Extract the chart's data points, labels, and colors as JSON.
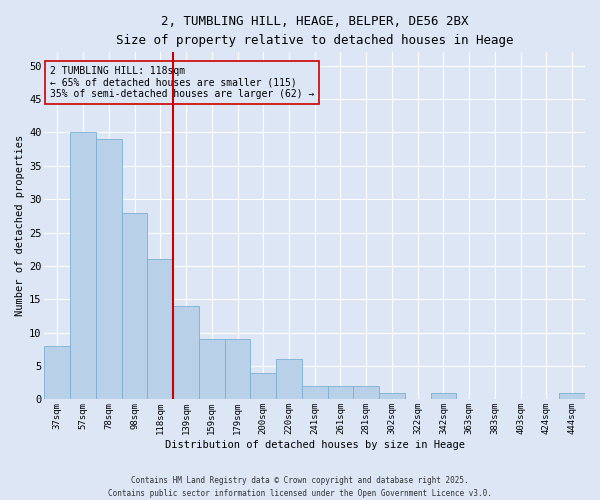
{
  "title_line1": "2, TUMBLING HILL, HEAGE, BELPER, DE56 2BX",
  "title_line2": "Size of property relative to detached houses in Heage",
  "xlabel": "Distribution of detached houses by size in Heage",
  "ylabel": "Number of detached properties",
  "categories": [
    "37sqm",
    "57sqm",
    "78sqm",
    "98sqm",
    "118sqm",
    "139sqm",
    "159sqm",
    "179sqm",
    "200sqm",
    "220sqm",
    "241sqm",
    "261sqm",
    "281sqm",
    "302sqm",
    "322sqm",
    "342sqm",
    "363sqm",
    "383sqm",
    "403sqm",
    "424sqm",
    "444sqm"
  ],
  "values": [
    8,
    40,
    39,
    28,
    21,
    14,
    9,
    9,
    4,
    6,
    2,
    2,
    2,
    1,
    0,
    1,
    0,
    0,
    0,
    0,
    1
  ],
  "bar_color": "#b8d0e8",
  "bar_edge_color": "#7aafd4",
  "highlight_index": 4,
  "vline_color": "#cc0000",
  "annotation_title": "2 TUMBLING HILL: 118sqm",
  "annotation_line2": "← 65% of detached houses are smaller (115)",
  "annotation_line3": "35% of semi-detached houses are larger (62) →",
  "annotation_box_color": "#cc0000",
  "ylim": [
    0,
    52
  ],
  "yticks": [
    0,
    5,
    10,
    15,
    20,
    25,
    30,
    35,
    40,
    45,
    50
  ],
  "background_color": "#dce6f5",
  "grid_color": "#ffffff",
  "footnote1": "Contains HM Land Registry data © Crown copyright and database right 2025.",
  "footnote2": "Contains public sector information licensed under the Open Government Licence v3.0."
}
